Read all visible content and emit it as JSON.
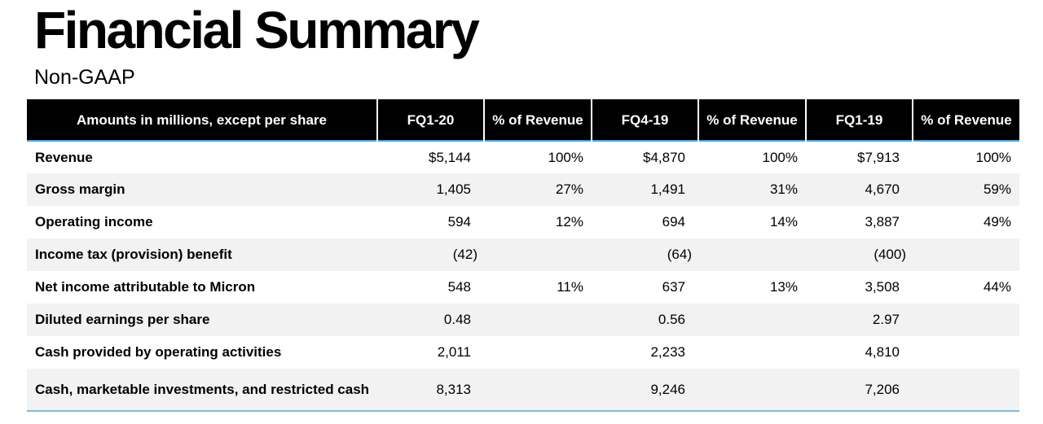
{
  "title": "Financial Summary",
  "subtitle": "Non-GAAP",
  "colors": {
    "header_bg": "#000000",
    "header_text": "#ffffff",
    "row_alt": "#f2f2f2",
    "rule": "#4aa3d8"
  },
  "table": {
    "headers": [
      "Amounts in millions, except per share",
      "FQ1-20",
      "% of Revenue",
      "FQ4-19",
      "% of Revenue",
      "FQ1-19",
      "% of Revenue"
    ],
    "rows": [
      {
        "label": "Revenue",
        "fq1_20": "$5,144",
        "fq1_20_pct": "100%",
        "fq4_19": "$4,870",
        "fq4_19_pct": "100%",
        "fq1_19": "$7,913",
        "fq1_19_pct": "100%"
      },
      {
        "label": "Gross margin",
        "fq1_20": "1,405",
        "fq1_20_pct": "27%",
        "fq4_19": "1,491",
        "fq4_19_pct": "31%",
        "fq1_19": "4,670",
        "fq1_19_pct": "59%"
      },
      {
        "label": "Operating income",
        "fq1_20": "594",
        "fq1_20_pct": "12%",
        "fq4_19": "694",
        "fq4_19_pct": "14%",
        "fq1_19": "3,887",
        "fq1_19_pct": "49%"
      },
      {
        "label": "Income tax (provision) benefit",
        "fq1_20": "(42)",
        "fq1_20_pct": "",
        "fq4_19": "(64)",
        "fq4_19_pct": "",
        "fq1_19": "(400)",
        "fq1_19_pct": ""
      },
      {
        "label": "Net income attributable to Micron",
        "fq1_20": "548",
        "fq1_20_pct": "11%",
        "fq4_19": "637",
        "fq4_19_pct": "13%",
        "fq1_19": "3,508",
        "fq1_19_pct": "44%"
      },
      {
        "label": "Diluted earnings per share",
        "fq1_20": "0.48",
        "fq1_20_pct": "",
        "fq4_19": "0.56",
        "fq4_19_pct": "",
        "fq1_19": "2.97",
        "fq1_19_pct": ""
      },
      {
        "label": "Cash provided by operating activities",
        "fq1_20": "2,011",
        "fq1_20_pct": "",
        "fq4_19": "2,233",
        "fq4_19_pct": "",
        "fq1_19": "4,810",
        "fq1_19_pct": ""
      },
      {
        "label": "Cash, marketable investments, and restricted cash",
        "fq1_20": "8,313",
        "fq1_20_pct": "",
        "fq4_19": "9,246",
        "fq4_19_pct": "",
        "fq1_19": "7,206",
        "fq1_19_pct": ""
      }
    ]
  }
}
